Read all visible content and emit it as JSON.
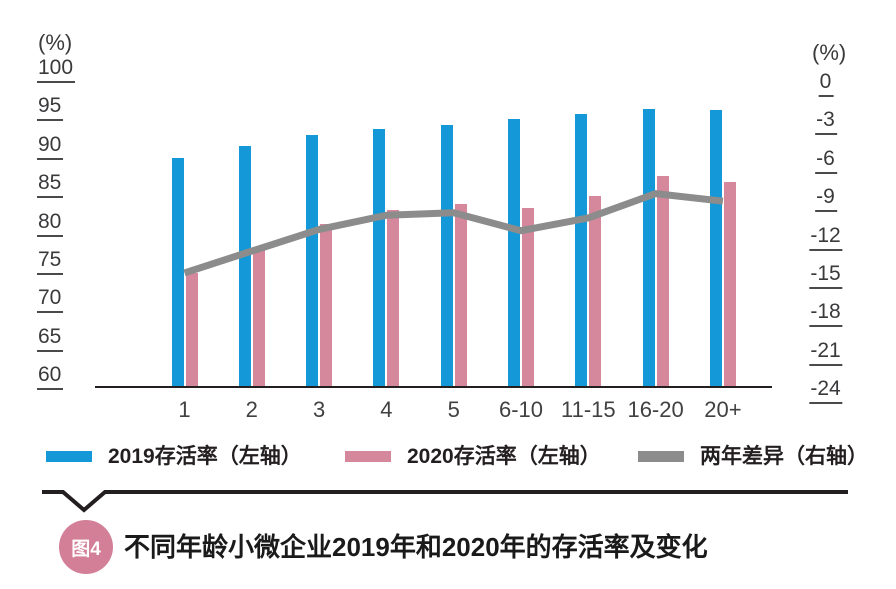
{
  "chart_data": {
    "type": "bar",
    "subtype": "bar-line-combo",
    "categories": [
      "1",
      "2",
      "3",
      "4",
      "5",
      "6-10",
      "11-15",
      "16-20",
      "20+"
    ],
    "series": [
      {
        "name": "2019存活率（左轴）",
        "kind": "bar",
        "axis": "left",
        "color": "#1598d7",
        "values": [
          90.0,
          91.5,
          93.0,
          93.7,
          94.3,
          95.1,
          95.7,
          96.4,
          96.2
        ]
      },
      {
        "name": "2020存活率（左轴）",
        "kind": "bar",
        "axis": "left",
        "color": "#d5879c",
        "values": [
          75.0,
          78.2,
          81.4,
          83.2,
          84.0,
          83.4,
          85.0,
          87.6,
          86.8
        ]
      },
      {
        "name": "两年差异（右轴）",
        "kind": "line",
        "axis": "right",
        "color": "#8c8c8c",
        "values": [
          -15.0,
          -13.3,
          -11.6,
          -10.5,
          -10.3,
          -11.7,
          -10.7,
          -8.8,
          -9.4
        ]
      }
    ],
    "left_axis": {
      "label": "(%)",
      "min": 60,
      "max": 100,
      "step": 5,
      "ticks": [
        "100",
        "95",
        "90",
        "85",
        "80",
        "75",
        "70",
        "65",
        "60"
      ]
    },
    "right_axis": {
      "label": "(%)",
      "min": -24,
      "max": 0,
      "step": 3,
      "ticks": [
        "0",
        "-3",
        "-6",
        "-9",
        "-12",
        "-15",
        "-18",
        "-21",
        "-24"
      ]
    },
    "xlabel": "",
    "ylabel": "(%)",
    "grid": false,
    "legend_position": "bottom"
  },
  "caption": {
    "badge": "图4",
    "badge_color": "#d27f97",
    "title": "不同年龄小微企业2019年和2020年的存活率及变化",
    "separator_color": "#231f20"
  }
}
